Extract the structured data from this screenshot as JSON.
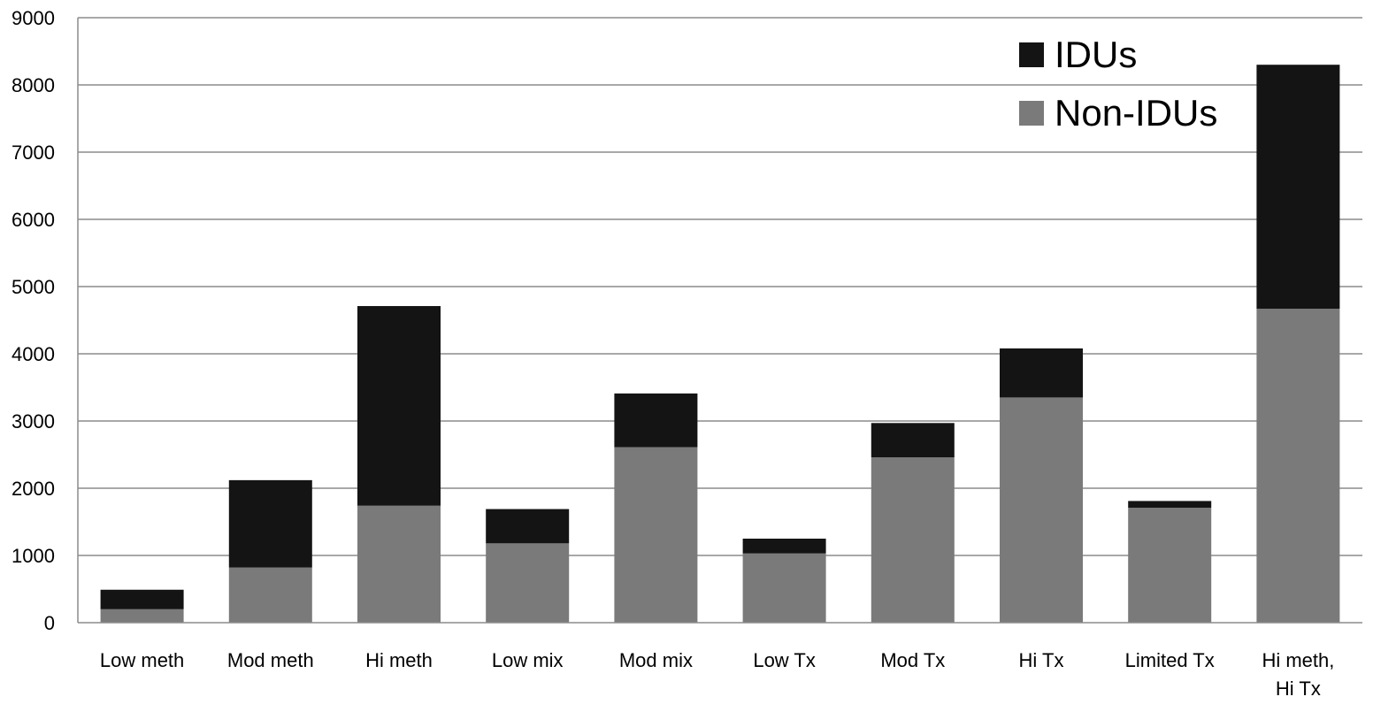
{
  "chart_data": {
    "type": "bar",
    "stacked": true,
    "title": "",
    "xlabel": "",
    "ylabel": "",
    "ylim": [
      0,
      9000
    ],
    "yticks": [
      0,
      1000,
      2000,
      3000,
      4000,
      5000,
      6000,
      7000,
      8000,
      9000
    ],
    "grid": true,
    "legend_position": "top-right",
    "categories": [
      "Low meth",
      "Mod meth",
      "Hi meth",
      "Low mix",
      "Mod mix",
      "Low Tx",
      "Mod Tx",
      "Hi Tx",
      "Limited Tx",
      "Hi meth, Hi Tx"
    ],
    "series": [
      {
        "name": "Non-IDUs",
        "color": "#7a7a7a",
        "values": [
          200,
          820,
          1740,
          1180,
          2610,
          1030,
          2460,
          3350,
          1710,
          4670
        ]
      },
      {
        "name": "IDUs",
        "color": "#141414",
        "values": [
          290,
          1300,
          2970,
          510,
          800,
          220,
          510,
          730,
          100,
          3630
        ]
      }
    ],
    "legend_order": [
      "IDUs",
      "Non-IDUs"
    ],
    "colors": {
      "grid": "#8c8c8c",
      "axis": "#8c8c8c",
      "text": "#000000"
    }
  }
}
